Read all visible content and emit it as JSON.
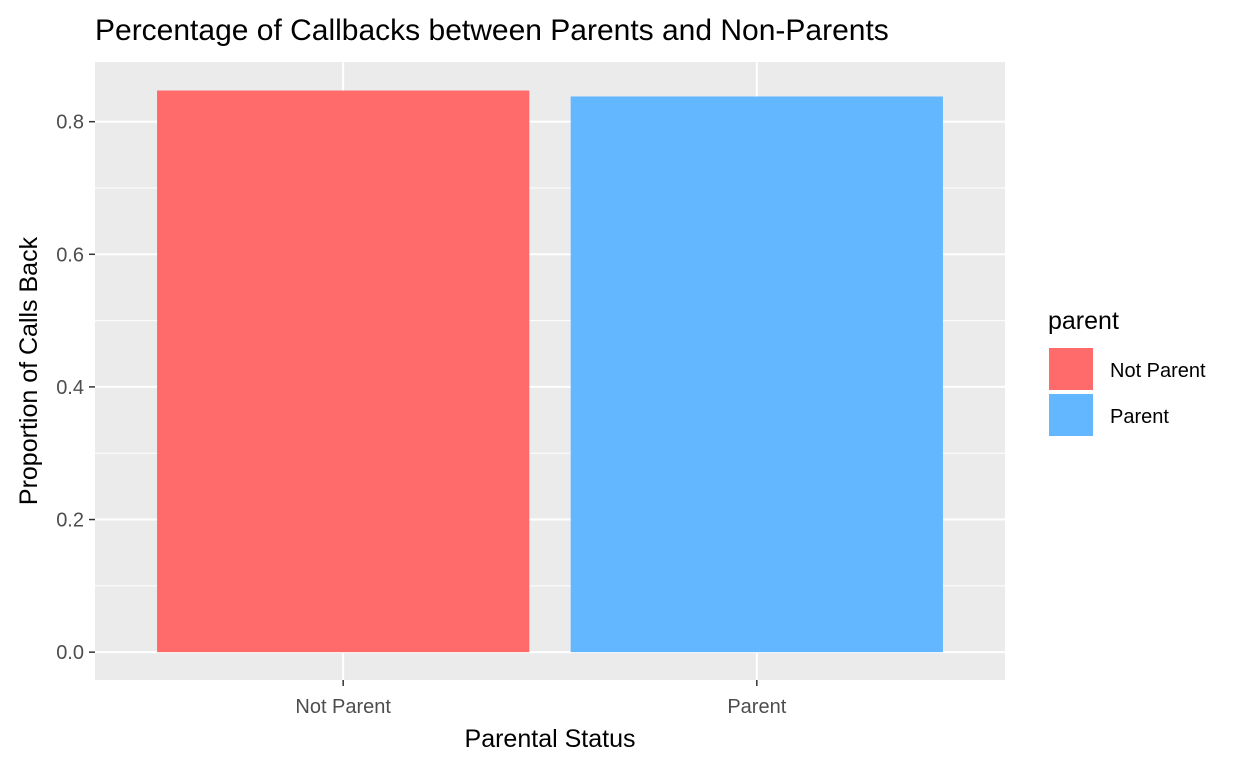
{
  "chart_data": {
    "type": "bar",
    "title": "Percentage of Callbacks between Parents and Non-Parents",
    "xlabel": "Parental Status",
    "ylabel": "Proportion of Calls Back",
    "categories": [
      "Not Parent",
      "Parent"
    ],
    "values": [
      0.847,
      0.838
    ],
    "colors": [
      "#FF6B6B",
      "#63B7FF"
    ],
    "ylim": [
      -0.042,
      0.89
    ],
    "yticks": [
      0.0,
      0.2,
      0.4,
      0.6,
      0.8
    ],
    "ytick_labels": [
      "0.0",
      "0.2",
      "0.4",
      "0.6",
      "0.8"
    ],
    "grid": true,
    "legend": {
      "title": "parent",
      "position": "right",
      "entries": [
        "Not Parent",
        "Parent"
      ]
    }
  }
}
